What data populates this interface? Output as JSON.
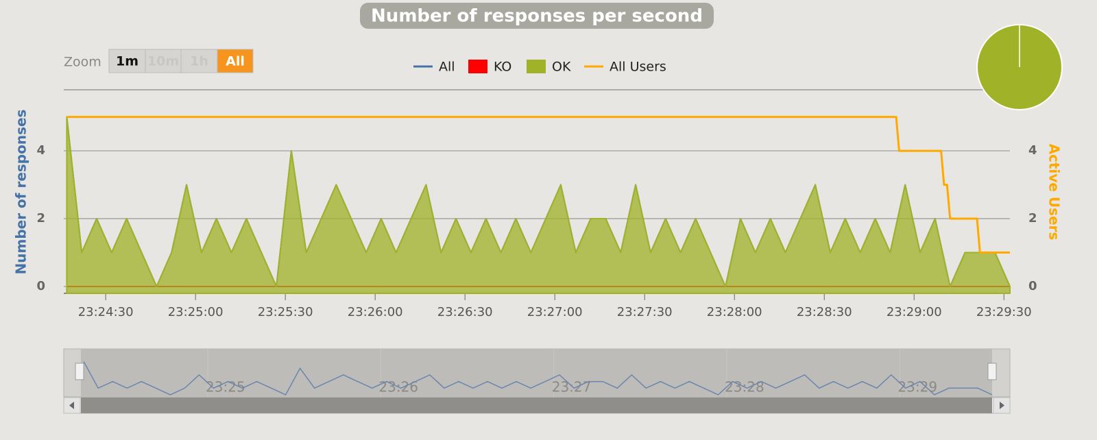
{
  "chart_data": {
    "type": "area",
    "title": "Number of responses per second",
    "y_axis_label": "Number of responses",
    "y2_axis_label": "Active Users",
    "zoom": {
      "label": "Zoom",
      "buttons": [
        "1m",
        "10m",
        "1h",
        "All"
      ],
      "active": "All"
    },
    "xlim": [
      "23:24:16",
      "23:29:32"
    ],
    "xticks": [
      "23:24:30",
      "23:25:00",
      "23:25:30",
      "23:26:00",
      "23:26:30",
      "23:27:00",
      "23:27:30",
      "23:28:00",
      "23:28:30",
      "23:29:00",
      "23:29:30"
    ],
    "ylim": [
      0,
      5.8
    ],
    "yticks": [
      0,
      2,
      4
    ],
    "y2lim": [
      0,
      5.8
    ],
    "y2ticks": [
      0,
      2,
      4
    ],
    "grid": true,
    "x": [
      "23:24:17",
      "23:24:22",
      "23:24:27",
      "23:24:32",
      "23:24:37",
      "23:24:42",
      "23:24:47",
      "23:24:52",
      "23:24:57",
      "23:25:02",
      "23:25:07",
      "23:25:12",
      "23:25:17",
      "23:25:22",
      "23:25:27",
      "23:25:32",
      "23:25:37",
      "23:25:42",
      "23:25:47",
      "23:25:52",
      "23:25:57",
      "23:26:02",
      "23:26:07",
      "23:26:12",
      "23:26:17",
      "23:26:22",
      "23:26:27",
      "23:26:32",
      "23:26:37",
      "23:26:42",
      "23:26:47",
      "23:26:52",
      "23:26:57",
      "23:27:02",
      "23:27:07",
      "23:27:12",
      "23:27:17",
      "23:27:22",
      "23:27:27",
      "23:27:32",
      "23:27:37",
      "23:27:42",
      "23:27:47",
      "23:27:52",
      "23:27:57",
      "23:28:02",
      "23:28:07",
      "23:28:12",
      "23:28:17",
      "23:28:22",
      "23:28:27",
      "23:28:32",
      "23:28:37",
      "23:28:42",
      "23:28:47",
      "23:28:52",
      "23:28:57",
      "23:29:02",
      "23:29:07",
      "23:29:12",
      "23:29:17",
      "23:29:22",
      "23:29:27",
      "23:29:32"
    ],
    "series": [
      {
        "name": "All",
        "color": "#4572A7",
        "values": [
          5,
          1,
          2,
          1,
          2,
          1,
          0,
          1,
          3,
          1,
          2,
          1,
          2,
          1,
          0,
          4,
          1,
          2,
          3,
          2,
          1,
          2,
          1,
          2,
          3,
          1,
          2,
          1,
          2,
          1,
          2,
          1,
          2,
          3,
          1,
          2,
          2,
          1,
          3,
          1,
          2,
          1,
          2,
          1,
          0,
          2,
          1,
          2,
          1,
          2,
          3,
          1,
          2,
          1,
          2,
          1,
          3,
          1,
          2,
          0,
          1,
          1,
          1,
          0
        ]
      },
      {
        "name": "KO",
        "color": "#FF0000",
        "values": [
          0,
          0,
          0,
          0,
          0,
          0,
          0,
          0,
          0,
          0,
          0,
          0,
          0,
          0,
          0,
          0,
          0,
          0,
          0,
          0,
          0,
          0,
          0,
          0,
          0,
          0,
          0,
          0,
          0,
          0,
          0,
          0,
          0,
          0,
          0,
          0,
          0,
          0,
          0,
          0,
          0,
          0,
          0,
          0,
          0,
          0,
          0,
          0,
          0,
          0,
          0,
          0,
          0,
          0,
          0,
          0,
          0,
          0,
          0,
          0,
          0,
          0,
          0,
          0
        ]
      },
      {
        "name": "OK",
        "color": "#A0B228",
        "values": [
          5,
          1,
          2,
          1,
          2,
          1,
          0,
          1,
          3,
          1,
          2,
          1,
          2,
          1,
          0,
          4,
          1,
          2,
          3,
          2,
          1,
          2,
          1,
          2,
          3,
          1,
          2,
          1,
          2,
          1,
          2,
          1,
          2,
          3,
          1,
          2,
          2,
          1,
          3,
          1,
          2,
          1,
          2,
          1,
          0,
          2,
          1,
          2,
          1,
          2,
          3,
          1,
          2,
          1,
          2,
          1,
          3,
          1,
          2,
          0,
          1,
          1,
          1,
          0
        ]
      },
      {
        "name": "All Users",
        "color": "#FFA900",
        "axis": "y2",
        "x": [
          "23:24:17",
          "23:28:54",
          "23:28:55",
          "23:29:09",
          "23:29:10",
          "23:29:11",
          "23:29:12",
          "23:29:21",
          "23:29:22",
          "23:29:32"
        ],
        "values": [
          5,
          5,
          4,
          4,
          3,
          3,
          2,
          2,
          1,
          1
        ]
      }
    ],
    "navigator_ticks": [
      {
        "value": "23:25:00",
        "label": "23:25"
      },
      {
        "value": "23:26:00",
        "label": "23:26"
      },
      {
        "value": "23:27:00",
        "label": "23:27"
      },
      {
        "value": "23:28:00",
        "label": "23:28"
      },
      {
        "value": "23:29:00",
        "label": "23:29"
      }
    ]
  }
}
